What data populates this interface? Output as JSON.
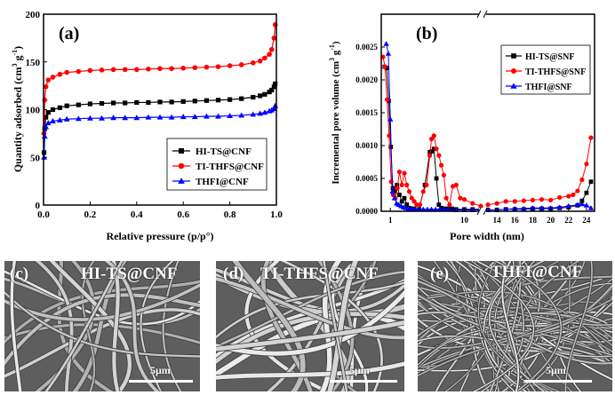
{
  "chart_data": [
    {
      "type": "scatter",
      "panel_label": "(a)",
      "title": "",
      "xlabel": "Relative pressure (p/p°)",
      "ylabel": "Quantity adsorbed (cm³ g⁻¹)",
      "ylabel_base": "Quantity adsorbed (cm",
      "ylabel_sup1": "3",
      "ylabel_mid": " g",
      "ylabel_sup2": "-1",
      "ylabel_end": ")",
      "xlim": [
        0.0,
        1.0
      ],
      "ylim": [
        0,
        200
      ],
      "xticks": [
        "0.0",
        "0.2",
        "0.4",
        "0.6",
        "0.8",
        "1.0"
      ],
      "yticks": [
        "0",
        "50",
        "100",
        "150",
        "200"
      ],
      "legend_position": "right-middle",
      "series": [
        {
          "name": "HI-TS@CNF",
          "color": "#000000",
          "marker": "square",
          "x": [
            0.002,
            0.005,
            0.01,
            0.02,
            0.04,
            0.07,
            0.1,
            0.15,
            0.2,
            0.25,
            0.3,
            0.35,
            0.4,
            0.45,
            0.5,
            0.55,
            0.6,
            0.65,
            0.7,
            0.75,
            0.8,
            0.85,
            0.9,
            0.93,
            0.95,
            0.97,
            0.98,
            0.99,
            0.995
          ],
          "y": [
            55,
            80,
            92,
            97,
            100,
            102,
            104,
            105,
            106,
            106.5,
            107,
            107,
            107.5,
            107.5,
            108,
            108,
            108.5,
            109,
            109.5,
            110,
            110.5,
            111.5,
            113,
            114.5,
            116,
            118.5,
            120.5,
            124,
            127
          ]
        },
        {
          "name": "TI-THFS@CNF",
          "color": "#ff0000",
          "marker": "circle",
          "x": [
            0.002,
            0.005,
            0.01,
            0.02,
            0.04,
            0.07,
            0.1,
            0.15,
            0.2,
            0.25,
            0.3,
            0.35,
            0.4,
            0.45,
            0.5,
            0.55,
            0.6,
            0.65,
            0.7,
            0.75,
            0.8,
            0.85,
            0.9,
            0.93,
            0.95,
            0.97,
            0.98,
            0.99,
            0.995
          ],
          "y": [
            75,
            110,
            124,
            131,
            134,
            137,
            139,
            140,
            141,
            141.5,
            142,
            142,
            142,
            142.5,
            143,
            143,
            143.5,
            144,
            144.5,
            145,
            146,
            147,
            149,
            151,
            154,
            158,
            163,
            175,
            189
          ]
        },
        {
          "name": "THFI@CNF",
          "color": "#0000ff",
          "marker": "triangle",
          "x": [
            0.002,
            0.005,
            0.01,
            0.02,
            0.04,
            0.07,
            0.1,
            0.15,
            0.2,
            0.25,
            0.3,
            0.35,
            0.4,
            0.45,
            0.5,
            0.55,
            0.6,
            0.65,
            0.7,
            0.75,
            0.8,
            0.85,
            0.9,
            0.93,
            0.95,
            0.97,
            0.98,
            0.99,
            0.995
          ],
          "y": [
            50,
            72,
            82,
            86,
            88,
            89,
            90,
            90.5,
            91,
            91,
            91.5,
            91.5,
            91.5,
            92,
            92,
            92,
            92.5,
            92.5,
            93,
            93,
            93.5,
            94,
            95,
            96,
            97,
            98.5,
            99.5,
            101,
            104
          ]
        }
      ]
    },
    {
      "type": "line",
      "panel_label": "(b)",
      "title": "",
      "xlabel": "Pore width (nm)",
      "ylabel": "Incremental pore volume (cm³ g⁻¹)",
      "ylabel_base": "Incremental pore volume (cm",
      "ylabel_sup1": "3",
      "ylabel_mid": " g",
      "ylabel_sup2": "-1",
      "ylabel_end": ")",
      "ylim": [
        0,
        0.003
      ],
      "yticks": [
        "0.0000",
        "0.0005",
        "0.0010",
        "0.0015",
        "0.0020",
        "0.0025"
      ],
      "xlim_left_segment": [
        0,
        12
      ],
      "xlim_right_segment": [
        12.7,
        24.8
      ],
      "xticks_left": [
        "1",
        "10"
      ],
      "xticks_right": [
        "14",
        "16",
        "18",
        "20",
        "22",
        "24"
      ],
      "axis_break": true,
      "legend_position": "top-right",
      "series": [
        {
          "name": "HI-TS@SNF",
          "color": "#000000",
          "marker": "square",
          "x": [
            0.3,
            0.55,
            0.8,
            1.05,
            1.3,
            1.55,
            1.8,
            2.1,
            2.4,
            2.7,
            3.0,
            3.3,
            3.6,
            3.9,
            4.5,
            5.2,
            5.8,
            6.0,
            6.3,
            6.6,
            6.9,
            7.2,
            7.6,
            8.0,
            8.5,
            9.0,
            10.0,
            11.0,
            12.0,
            13.0,
            14.0,
            15.0,
            16.0,
            17.0,
            18.0,
            19.0,
            20.0,
            21.0,
            22.0,
            23.0,
            23.5,
            24.0,
            24.5
          ],
          "y": [
            0.0022,
            0.00218,
            0.00168,
            0.00098,
            0.00035,
            0.0003,
            0.0004,
            0.00025,
            0.00015,
            0.0002,
            0.0001,
            5e-05,
            4e-05,
            4e-05,
            3e-05,
            0.0004,
            0.0009,
            0.00091,
            0.00095,
            0.0005,
            0.0001,
            5e-05,
            4e-05,
            4e-05,
            4e-05,
            3e-05,
            3e-05,
            3e-05,
            3e-05,
            2e-05,
            2e-05,
            3e-05,
            3e-05,
            3e-05,
            4e-05,
            4e-05,
            4e-05,
            5e-05,
            6e-05,
            9e-05,
            0.00016,
            0.00028,
            0.00045
          ]
        },
        {
          "name": "TI-THFS@SNF",
          "color": "#ff0000",
          "marker": "circle",
          "x": [
            0.1,
            0.35,
            0.6,
            0.85,
            1.1,
            1.35,
            1.6,
            1.85,
            2.1,
            2.4,
            2.7,
            3.0,
            3.3,
            3.6,
            3.9,
            4.2,
            4.6,
            5.0,
            5.4,
            5.8,
            6.0,
            6.3,
            6.6,
            6.9,
            7.2,
            7.5,
            7.8,
            8.2,
            8.6,
            9.0,
            9.5,
            10.0,
            11.0,
            12.0,
            13.0,
            14.0,
            15.0,
            16.0,
            17.0,
            18.0,
            19.0,
            20.0,
            21.0,
            22.0,
            22.5,
            23.0,
            23.5,
            24.0,
            24.5
          ],
          "y": [
            0.00235,
            0.0022,
            0.0017,
            0.00115,
            0.00045,
            0.00025,
            0.0002,
            0.00035,
            0.0006,
            0.0004,
            0.00058,
            0.0004,
            0.0003,
            0.0002,
            0.00015,
            0.0001,
            0.0001,
            0.0003,
            0.0004,
            0.00085,
            0.0011,
            0.00115,
            0.00095,
            0.00085,
            0.0007,
            0.00055,
            0.0002,
            0.0001,
            0.00038,
            0.0004,
            0.0002,
            0.00018,
            0.00012,
            8e-05,
            0.0001,
            0.00012,
            0.00015,
            0.00015,
            0.00016,
            0.00017,
            0.00018,
            0.00017,
            0.00021,
            0.00023,
            0.00025,
            0.00031,
            0.00048,
            0.00072,
            0.00112
          ]
        },
        {
          "name": "THFI@SNF",
          "color": "#0000ff",
          "marker": "triangle",
          "x": [
            0.5,
            0.75,
            1.0,
            1.25,
            1.5,
            1.75,
            2.0,
            2.3,
            2.6,
            2.9,
            3.2,
            3.6,
            4.0,
            4.5,
            5.0,
            5.5,
            6.0,
            6.5,
            7.0,
            7.5,
            8.0,
            9.0,
            10.0,
            11.0,
            12.0,
            13.0,
            14.0,
            15.0,
            16.0,
            17.0,
            18.0,
            19.0,
            20.0,
            21.0,
            22.0,
            23.0,
            23.5,
            24.0,
            24.5
          ],
          "y": [
            0.00255,
            0.0024,
            0.0014,
            0.0003,
            0.0002,
            0.00012,
            0.0001,
            8e-05,
            6e-05,
            5e-05,
            4e-05,
            3e-05,
            3e-05,
            3e-05,
            3e-05,
            3e-05,
            3e-05,
            3e-05,
            3e-05,
            3e-05,
            3e-05,
            2e-05,
            2e-05,
            2e-05,
            2e-05,
            2e-05,
            2e-05,
            3e-05,
            4e-05,
            4e-05,
            5e-05,
            5e-05,
            5e-05,
            6e-05,
            8e-05,
            0.0001,
            0.00011,
            9e-05,
            5e-05
          ]
        }
      ]
    }
  ],
  "sem_panels": [
    {
      "panel_label": "(c)",
      "sample": "HI-TS@CNF",
      "scale_bar": "5μm",
      "seed": 11,
      "fiber_count": 20,
      "fiber_width": 3.2
    },
    {
      "panel_label": "(d)",
      "sample": "TI-THFS@CNF",
      "scale_bar": "5μm",
      "seed": 29,
      "fiber_count": 24,
      "fiber_width": 4.2
    },
    {
      "panel_label": "(e)",
      "sample": "THFI@CNF",
      "scale_bar": "5μm",
      "seed": 47,
      "fiber_count": 70,
      "fiber_width": 1.6
    }
  ],
  "colors": {
    "black": "#000000",
    "red": "#ff0000",
    "blue": "#0000ff",
    "sem_bg": "#6d6d6d"
  }
}
